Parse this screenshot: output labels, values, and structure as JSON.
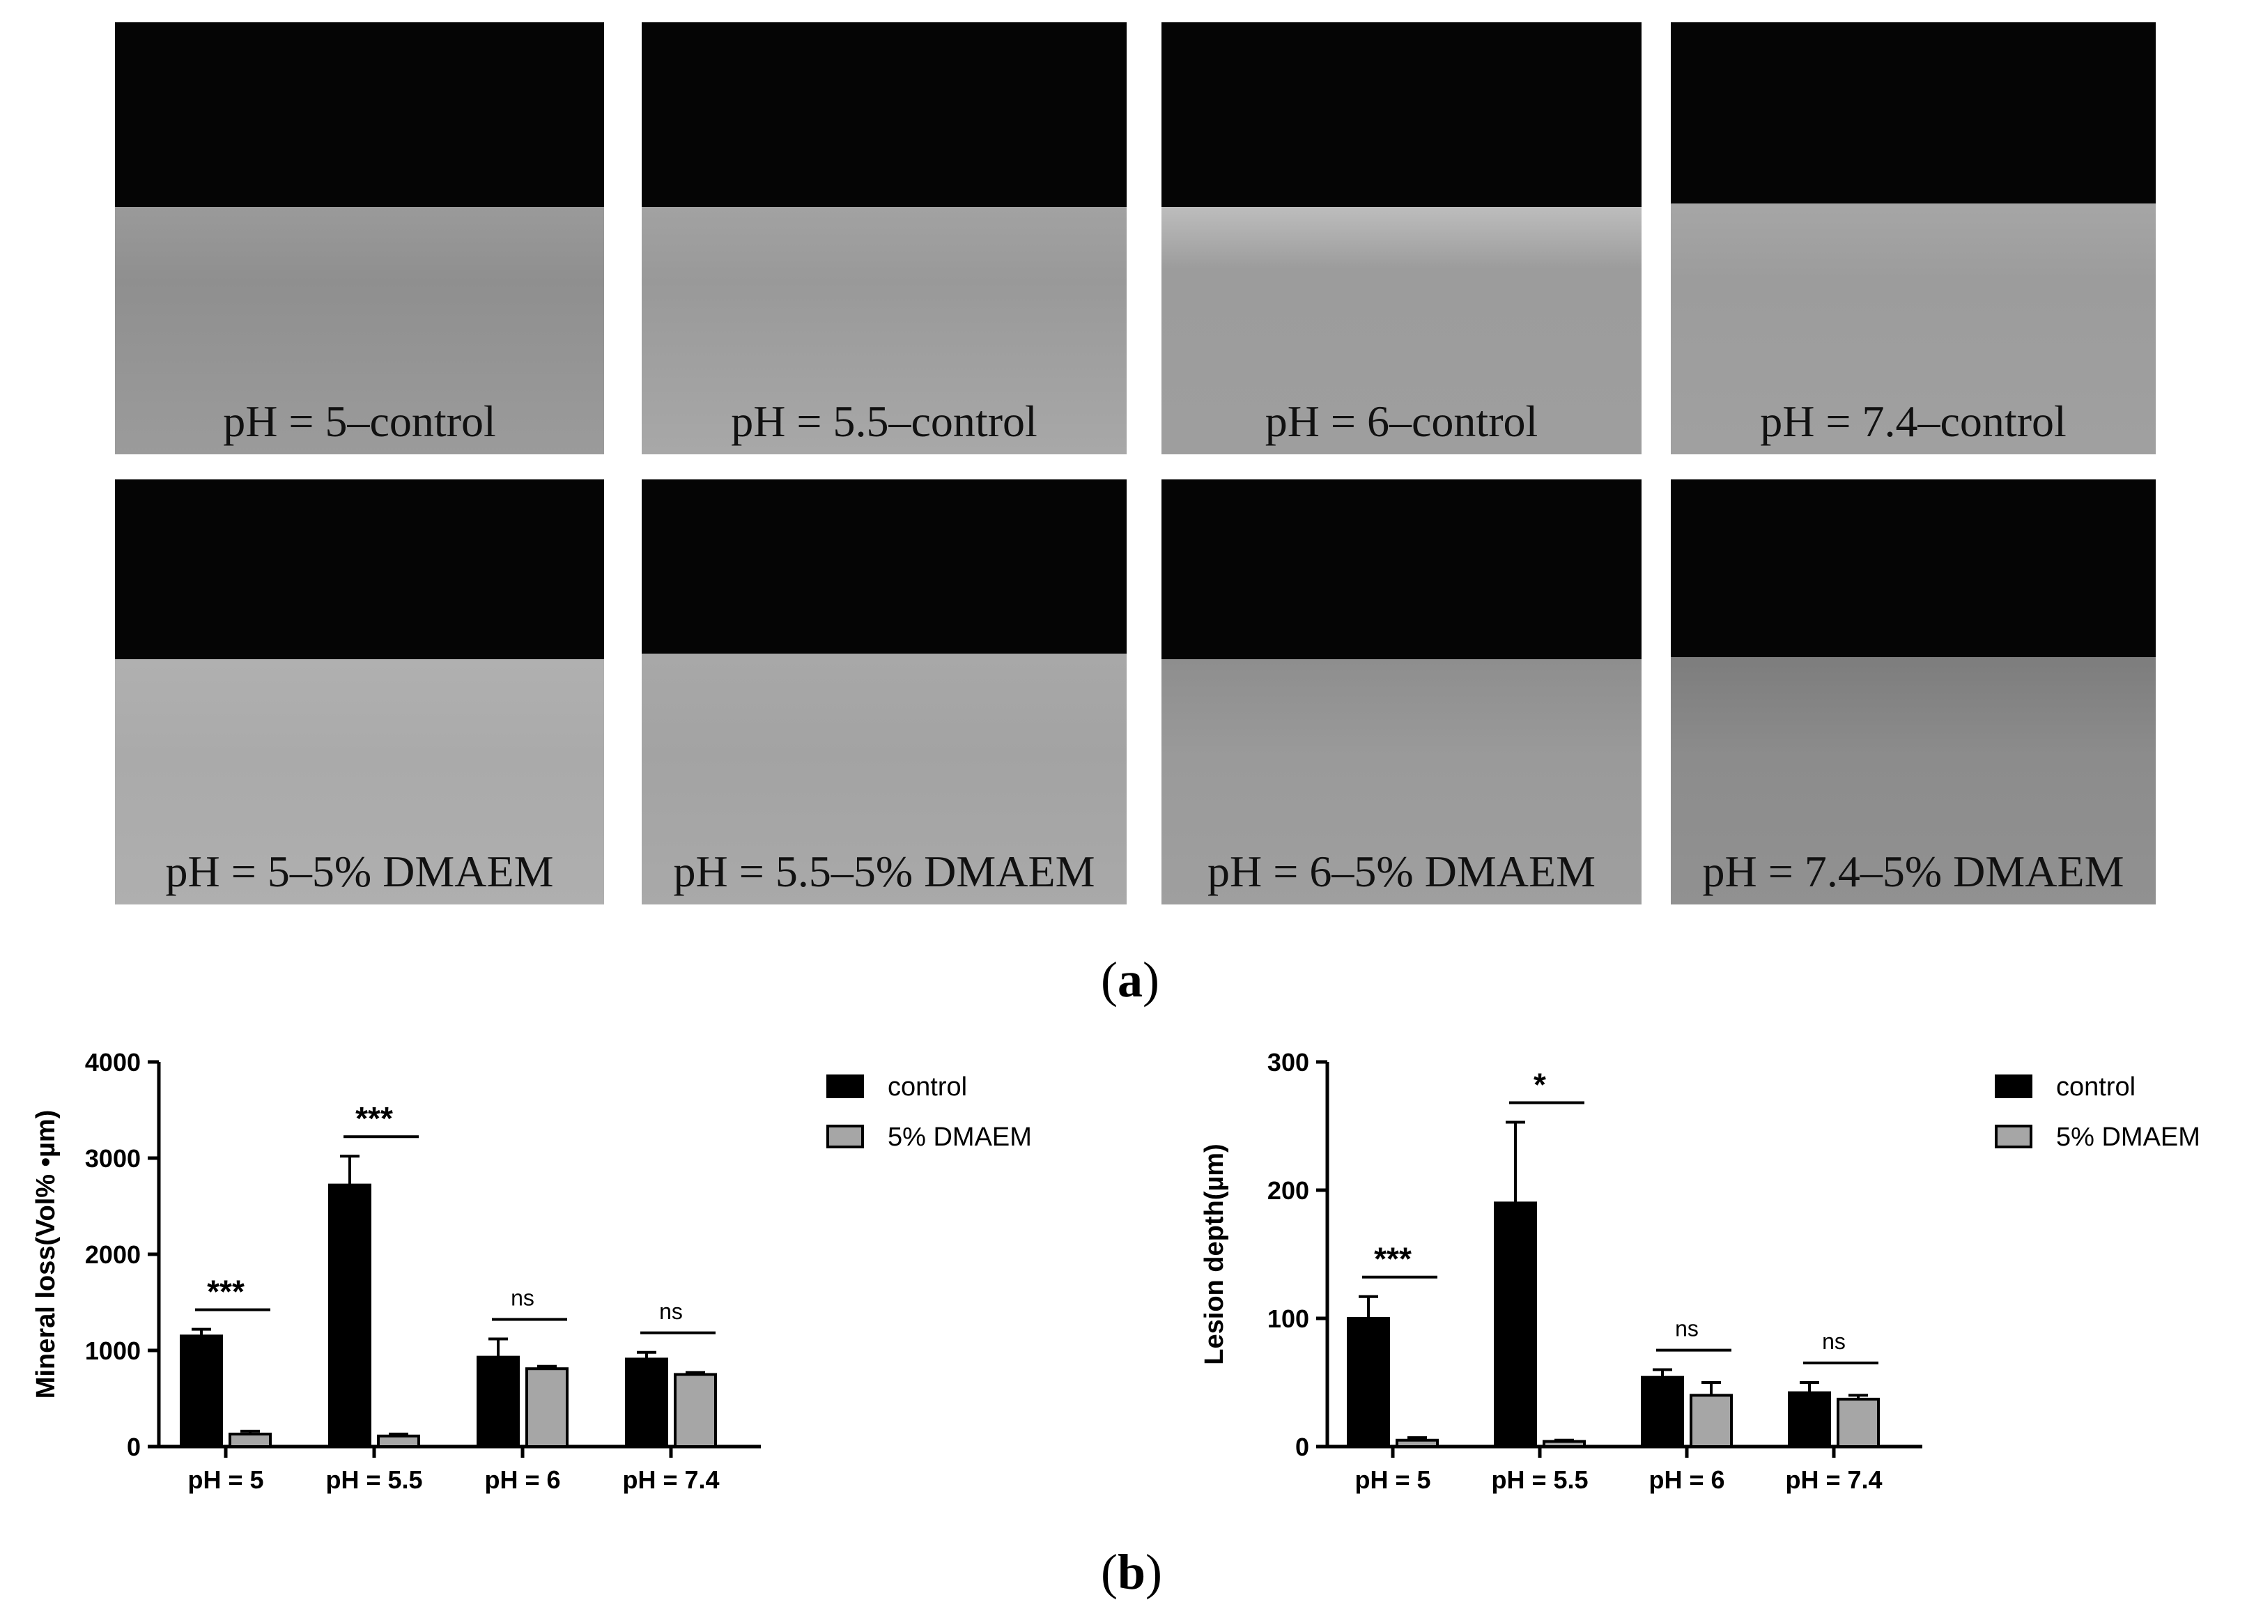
{
  "panel_a": {
    "label": "a",
    "images": [
      {
        "caption": "pH = 5–control"
      },
      {
        "caption": "pH = 5.5–control"
      },
      {
        "caption": "pH = 6–control"
      },
      {
        "caption": "pH = 7.4–control"
      },
      {
        "caption": "pH = 5–5% DMAEM"
      },
      {
        "caption": "pH = 5.5–5% DMAEM"
      },
      {
        "caption": "pH = 6–5% DMAEM"
      },
      {
        "caption": "pH = 7.4–5% DMAEM"
      }
    ]
  },
  "panel_b": {
    "label": "b"
  },
  "colors": {
    "control": "#000000",
    "dmaem": "#a6a6a6",
    "dark": "#050505"
  },
  "chart_data": [
    {
      "type": "bar",
      "title": "",
      "xlabel": "",
      "ylabel": "Mineral loss(Vol% •µm)",
      "categories": [
        "pH = 5",
        "pH = 5.5",
        "pH = 6",
        "pH = 7.4"
      ],
      "ylim": [
        0,
        4000
      ],
      "yticks": [
        "0",
        "1000",
        "2000",
        "3000",
        "4000"
      ],
      "legend_position": "top-right",
      "series": [
        {
          "name": "control",
          "values": [
            1150,
            2720,
            930,
            910
          ],
          "errors": [
            70,
            300,
            190,
            70
          ]
        },
        {
          "name": "5% DMAEM",
          "values": [
            130,
            110,
            810,
            750
          ],
          "errors": [
            30,
            20,
            25,
            20
          ]
        }
      ],
      "significance": [
        "***",
        "***",
        "ns",
        "ns"
      ]
    },
    {
      "type": "bar",
      "title": "",
      "xlabel": "",
      "ylabel": "Lesion depth(µm)",
      "categories": [
        "pH = 5",
        "pH = 5.5",
        "pH = 6",
        "pH = 7.4"
      ],
      "ylim": [
        0,
        300
      ],
      "yticks": [
        "0",
        "100",
        "200",
        "300"
      ],
      "legend_position": "top-right",
      "series": [
        {
          "name": "control",
          "values": [
            100,
            190,
            54,
            42
          ],
          "errors": [
            17,
            63,
            6,
            8
          ]
        },
        {
          "name": "5% DMAEM",
          "values": [
            5,
            4,
            40,
            37
          ],
          "errors": [
            2,
            1,
            10,
            3
          ]
        }
      ],
      "significance": [
        "***",
        "*",
        "ns",
        "ns"
      ]
    }
  ]
}
